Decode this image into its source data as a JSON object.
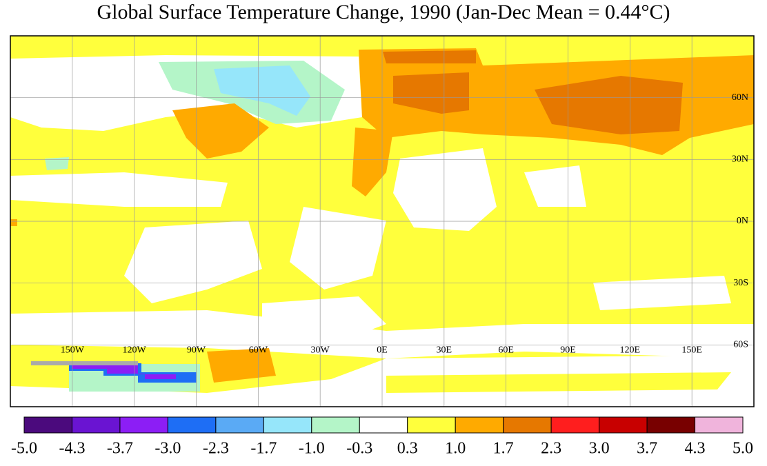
{
  "map": {
    "title": "Global Surface Temperature Change, 1990 (Jan-Dec Mean = 0.44°C)",
    "xlim": [
      -180,
      180
    ],
    "ylim": [
      -90,
      90
    ],
    "xticks": [
      {
        "value": -150,
        "label": "150W"
      },
      {
        "value": -120,
        "label": "120W"
      },
      {
        "value": -90,
        "label": "90W"
      },
      {
        "value": -60,
        "label": "60W"
      },
      {
        "value": -30,
        "label": "30W"
      },
      {
        "value": 0,
        "label": "0E"
      },
      {
        "value": 30,
        "label": "30E"
      },
      {
        "value": 60,
        "label": "60E"
      },
      {
        "value": 90,
        "label": "90E"
      },
      {
        "value": 120,
        "label": "120E"
      },
      {
        "value": 150,
        "label": "150E"
      }
    ],
    "yticks": [
      {
        "value": 60,
        "label": "60N"
      },
      {
        "value": 30,
        "label": "30N"
      },
      {
        "value": 0,
        "label": "0N"
      },
      {
        "value": -30,
        "label": "30S"
      },
      {
        "value": -60,
        "label": "60S"
      }
    ],
    "colorbar": {
      "ticks": [
        {
          "value": -5,
          "label": "-5.0"
        },
        {
          "value": -4.3,
          "label": "-4.3"
        },
        {
          "value": -3.7,
          "label": "-3.7"
        },
        {
          "value": -3,
          "label": "-3.0"
        },
        {
          "value": -2.3,
          "label": "-2.3"
        },
        {
          "value": -1.7,
          "label": "-1.7"
        },
        {
          "value": -1,
          "label": "-1.0"
        },
        {
          "value": -0.3,
          "label": "-0.3"
        },
        {
          "value": 0.3,
          "label": "0.3"
        },
        {
          "value": 1,
          "label": "1.0"
        },
        {
          "value": 1.7,
          "label": "1.7"
        },
        {
          "value": 2.3,
          "label": "2.3"
        },
        {
          "value": 3,
          "label": "3.0"
        },
        {
          "value": 3.7,
          "label": "3.7"
        },
        {
          "value": 4.3,
          "label": "4.3"
        },
        {
          "value": 5,
          "label": "5.0"
        }
      ],
      "colors": [
        "#4b0a7d",
        "#6a14d2",
        "#8c1ef5",
        "#1e6ef5",
        "#5aaaf5",
        "#96e6fa",
        "#b4f5c8",
        "#ffffff",
        "#ffff3c",
        "#ffaa00",
        "#e67800",
        "#ff1e1e",
        "#c80000",
        "#780000",
        "#f0b4dc"
      ]
    }
  }
}
